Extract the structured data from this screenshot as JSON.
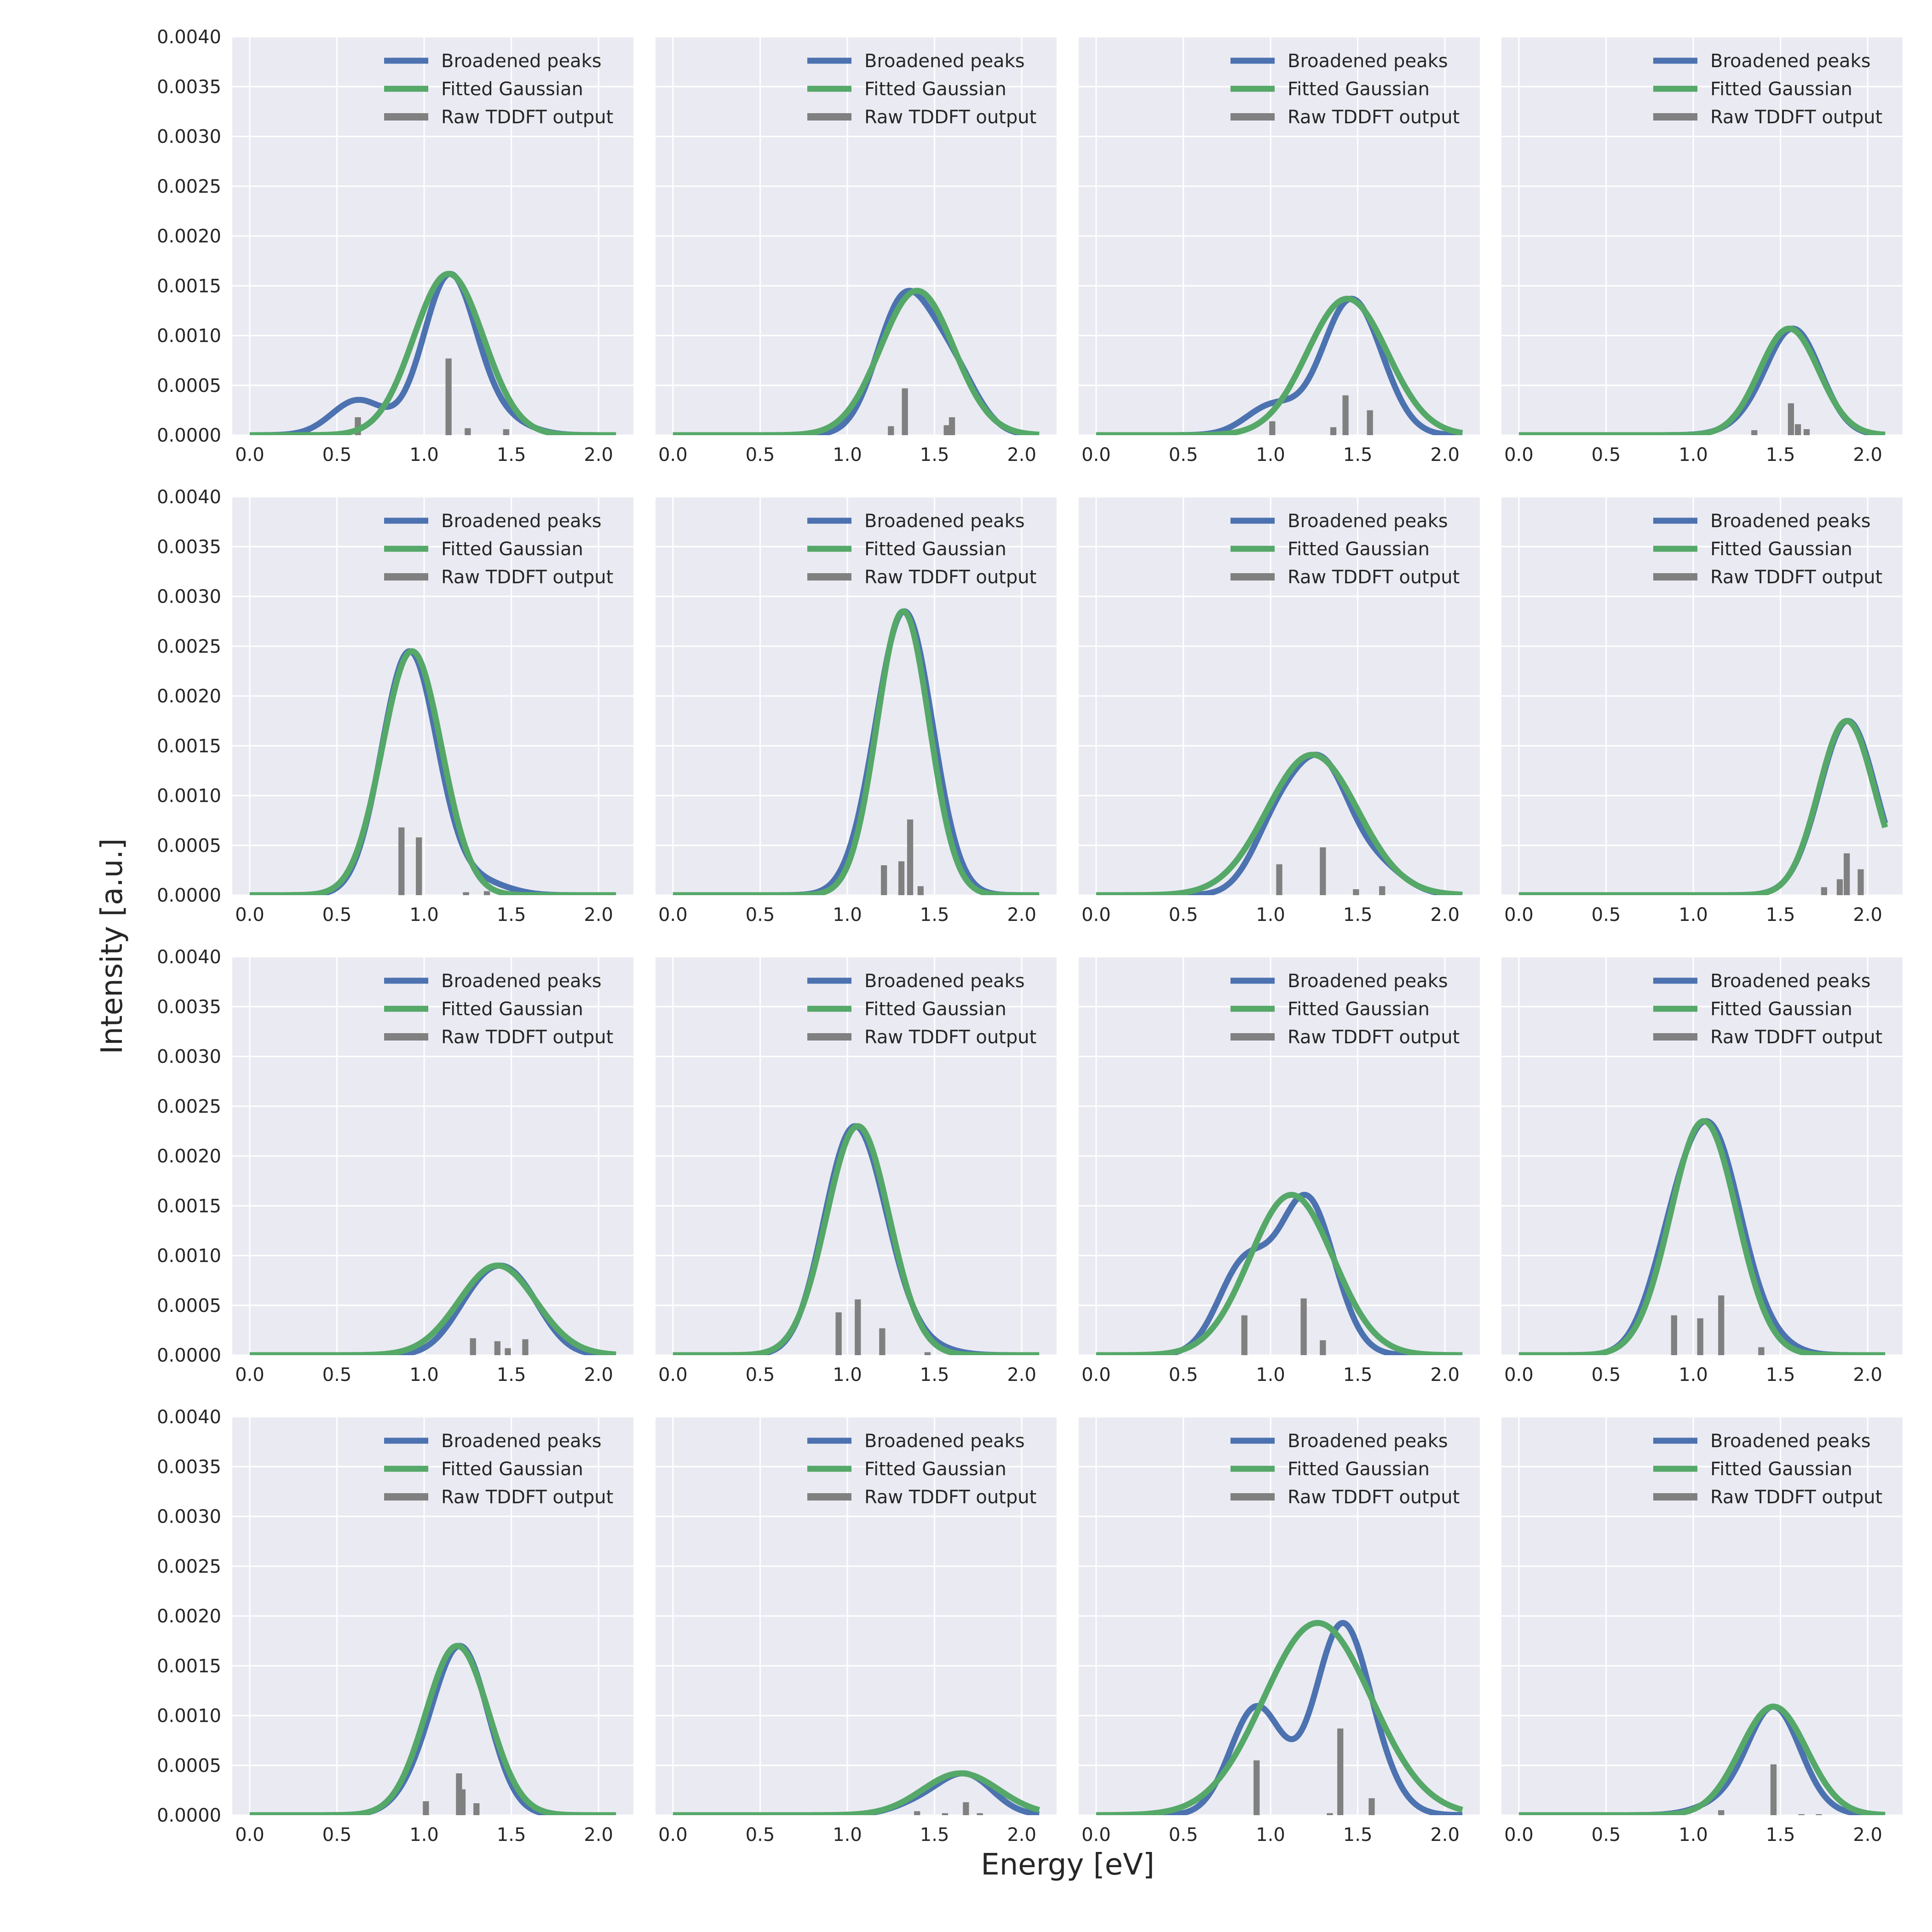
{
  "chart_data": {
    "type": "line",
    "layout": "4x4 grid of subplots, shared axes",
    "xlabel": "Energy [eV]",
    "ylabel": "Intensity [a.u.]",
    "xlim": [
      -0.1,
      2.2
    ],
    "ylim": [
      0,
      0.004
    ],
    "xticks": [
      "0.0",
      "0.5",
      "1.0",
      "1.5",
      "2.0"
    ],
    "xtick_values": [
      0,
      0.5,
      1.0,
      1.5,
      2.0
    ],
    "yticks": [
      "0.0000",
      "0.0005",
      "0.0010",
      "0.0015",
      "0.0020",
      "0.0025",
      "0.0030",
      "0.0035",
      "0.0040"
    ],
    "ytick_values": [
      0,
      0.0005,
      0.001,
      0.0015,
      0.002,
      0.0025,
      0.003,
      0.0035,
      0.004
    ],
    "grid": true,
    "legend": {
      "placement": "top-right",
      "entries": [
        "Broadened peaks",
        "Fitted Gaussian",
        "Raw TDDFT output"
      ]
    },
    "colors": {
      "broadened": "#4c72b0",
      "fitted": "#55a868",
      "raw": "#808080",
      "background": "#eaeaf2",
      "grid": "#ffffff"
    },
    "panels": [
      {
        "fit": {
          "amp": 0.00162,
          "center": 1.14,
          "sigma": 0.2
        },
        "raw": [
          [
            0.62,
            0.00018
          ],
          [
            1.14,
            0.00077
          ],
          [
            1.25,
            7e-05
          ],
          [
            1.47,
            6e-05
          ]
        ]
      },
      {
        "fit": {
          "amp": 0.00145,
          "center": 1.4,
          "sigma": 0.21
        },
        "raw": [
          [
            1.25,
            9e-05
          ],
          [
            1.33,
            0.00047
          ],
          [
            1.57,
            0.0001
          ],
          [
            1.6,
            0.00018
          ]
        ]
      },
      {
        "fit": {
          "amp": 0.00137,
          "center": 1.44,
          "sigma": 0.23
        },
        "raw": [
          [
            1.01,
            0.00014
          ],
          [
            1.36,
            8e-05
          ],
          [
            1.43,
            0.0004
          ],
          [
            1.57,
            0.00025
          ]
        ]
      },
      {
        "fit": {
          "amp": 0.00107,
          "center": 1.55,
          "sigma": 0.17
        },
        "raw": [
          [
            1.35,
            5e-05
          ],
          [
            1.56,
            0.00032
          ],
          [
            1.6,
            0.00011
          ],
          [
            1.65,
            6e-05
          ]
        ]
      },
      {
        "fit": {
          "amp": 0.00245,
          "center": 0.93,
          "sigma": 0.17
        },
        "raw": [
          [
            0.87,
            0.00068
          ],
          [
            0.97,
            0.00058
          ],
          [
            1.24,
            3e-05
          ],
          [
            1.36,
            4e-05
          ]
        ]
      },
      {
        "fit": {
          "amp": 0.00285,
          "center": 1.32,
          "sigma": 0.15
        },
        "raw": [
          [
            1.21,
            0.0003
          ],
          [
            1.31,
            0.00034
          ],
          [
            1.36,
            0.00076
          ],
          [
            1.42,
            9e-05
          ]
        ]
      },
      {
        "fit": {
          "amp": 0.00141,
          "center": 1.24,
          "sigma": 0.26
        },
        "raw": [
          [
            1.05,
            0.00031
          ],
          [
            1.3,
            0.00048
          ],
          [
            1.49,
            6e-05
          ],
          [
            1.64,
            9e-05
          ]
        ]
      },
      {
        "fit": {
          "amp": 0.00175,
          "center": 1.88,
          "sigma": 0.16
        },
        "raw": [
          [
            1.75,
            8e-05
          ],
          [
            1.84,
            0.00016
          ],
          [
            1.88,
            0.00042
          ],
          [
            1.96,
            0.00026
          ]
        ]
      },
      {
        "fit": {
          "amp": 0.0009,
          "center": 1.42,
          "sigma": 0.22
        },
        "raw": [
          [
            1.28,
            0.00017
          ],
          [
            1.42,
            0.00014
          ],
          [
            1.48,
            7e-05
          ],
          [
            1.58,
            0.00016
          ]
        ]
      },
      {
        "fit": {
          "amp": 0.0023,
          "center": 1.06,
          "sigma": 0.18
        },
        "raw": [
          [
            0.95,
            0.00043
          ],
          [
            1.06,
            0.00056
          ],
          [
            1.2,
            0.00027
          ],
          [
            1.46,
            3e-05
          ]
        ]
      },
      {
        "fit": {
          "amp": 0.00161,
          "center": 1.12,
          "sigma": 0.24
        },
        "raw": [
          [
            0.85,
            0.0004
          ],
          [
            1.19,
            0.00057
          ],
          [
            1.3,
            0.00015
          ]
        ]
      },
      {
        "fit": {
          "amp": 0.00235,
          "center": 1.06,
          "sigma": 0.19
        },
        "raw": [
          [
            0.89,
            0.0004
          ],
          [
            1.04,
            0.00037
          ],
          [
            1.16,
            0.0006
          ],
          [
            1.39,
            8e-05
          ]
        ]
      },
      {
        "fit": {
          "amp": 0.0017,
          "center": 1.19,
          "sigma": 0.18
        },
        "raw": [
          [
            1.01,
            0.00014
          ],
          [
            1.2,
            0.00042
          ],
          [
            1.22,
            0.00026
          ],
          [
            1.3,
            0.00012
          ]
        ]
      },
      {
        "fit": {
          "amp": 0.00042,
          "center": 1.65,
          "sigma": 0.22
        },
        "raw": [
          [
            1.4,
            4e-05
          ],
          [
            1.56,
            2e-05
          ],
          [
            1.68,
            0.00013
          ],
          [
            1.76,
            2e-05
          ]
        ]
      },
      {
        "fit": {
          "amp": 0.00193,
          "center": 1.27,
          "sigma": 0.31
        },
        "raw": [
          [
            0.92,
            0.00055
          ],
          [
            1.34,
            2e-05
          ],
          [
            1.4,
            0.00087
          ],
          [
            1.58,
            0.00017
          ]
        ]
      },
      {
        "fit": {
          "amp": 0.00109,
          "center": 1.46,
          "sigma": 0.19
        },
        "raw": [
          [
            1.16,
            5e-05
          ],
          [
            1.46,
            0.00051
          ],
          [
            1.62,
            1e-05
          ],
          [
            1.72,
            1e-05
          ]
        ]
      }
    ]
  }
}
